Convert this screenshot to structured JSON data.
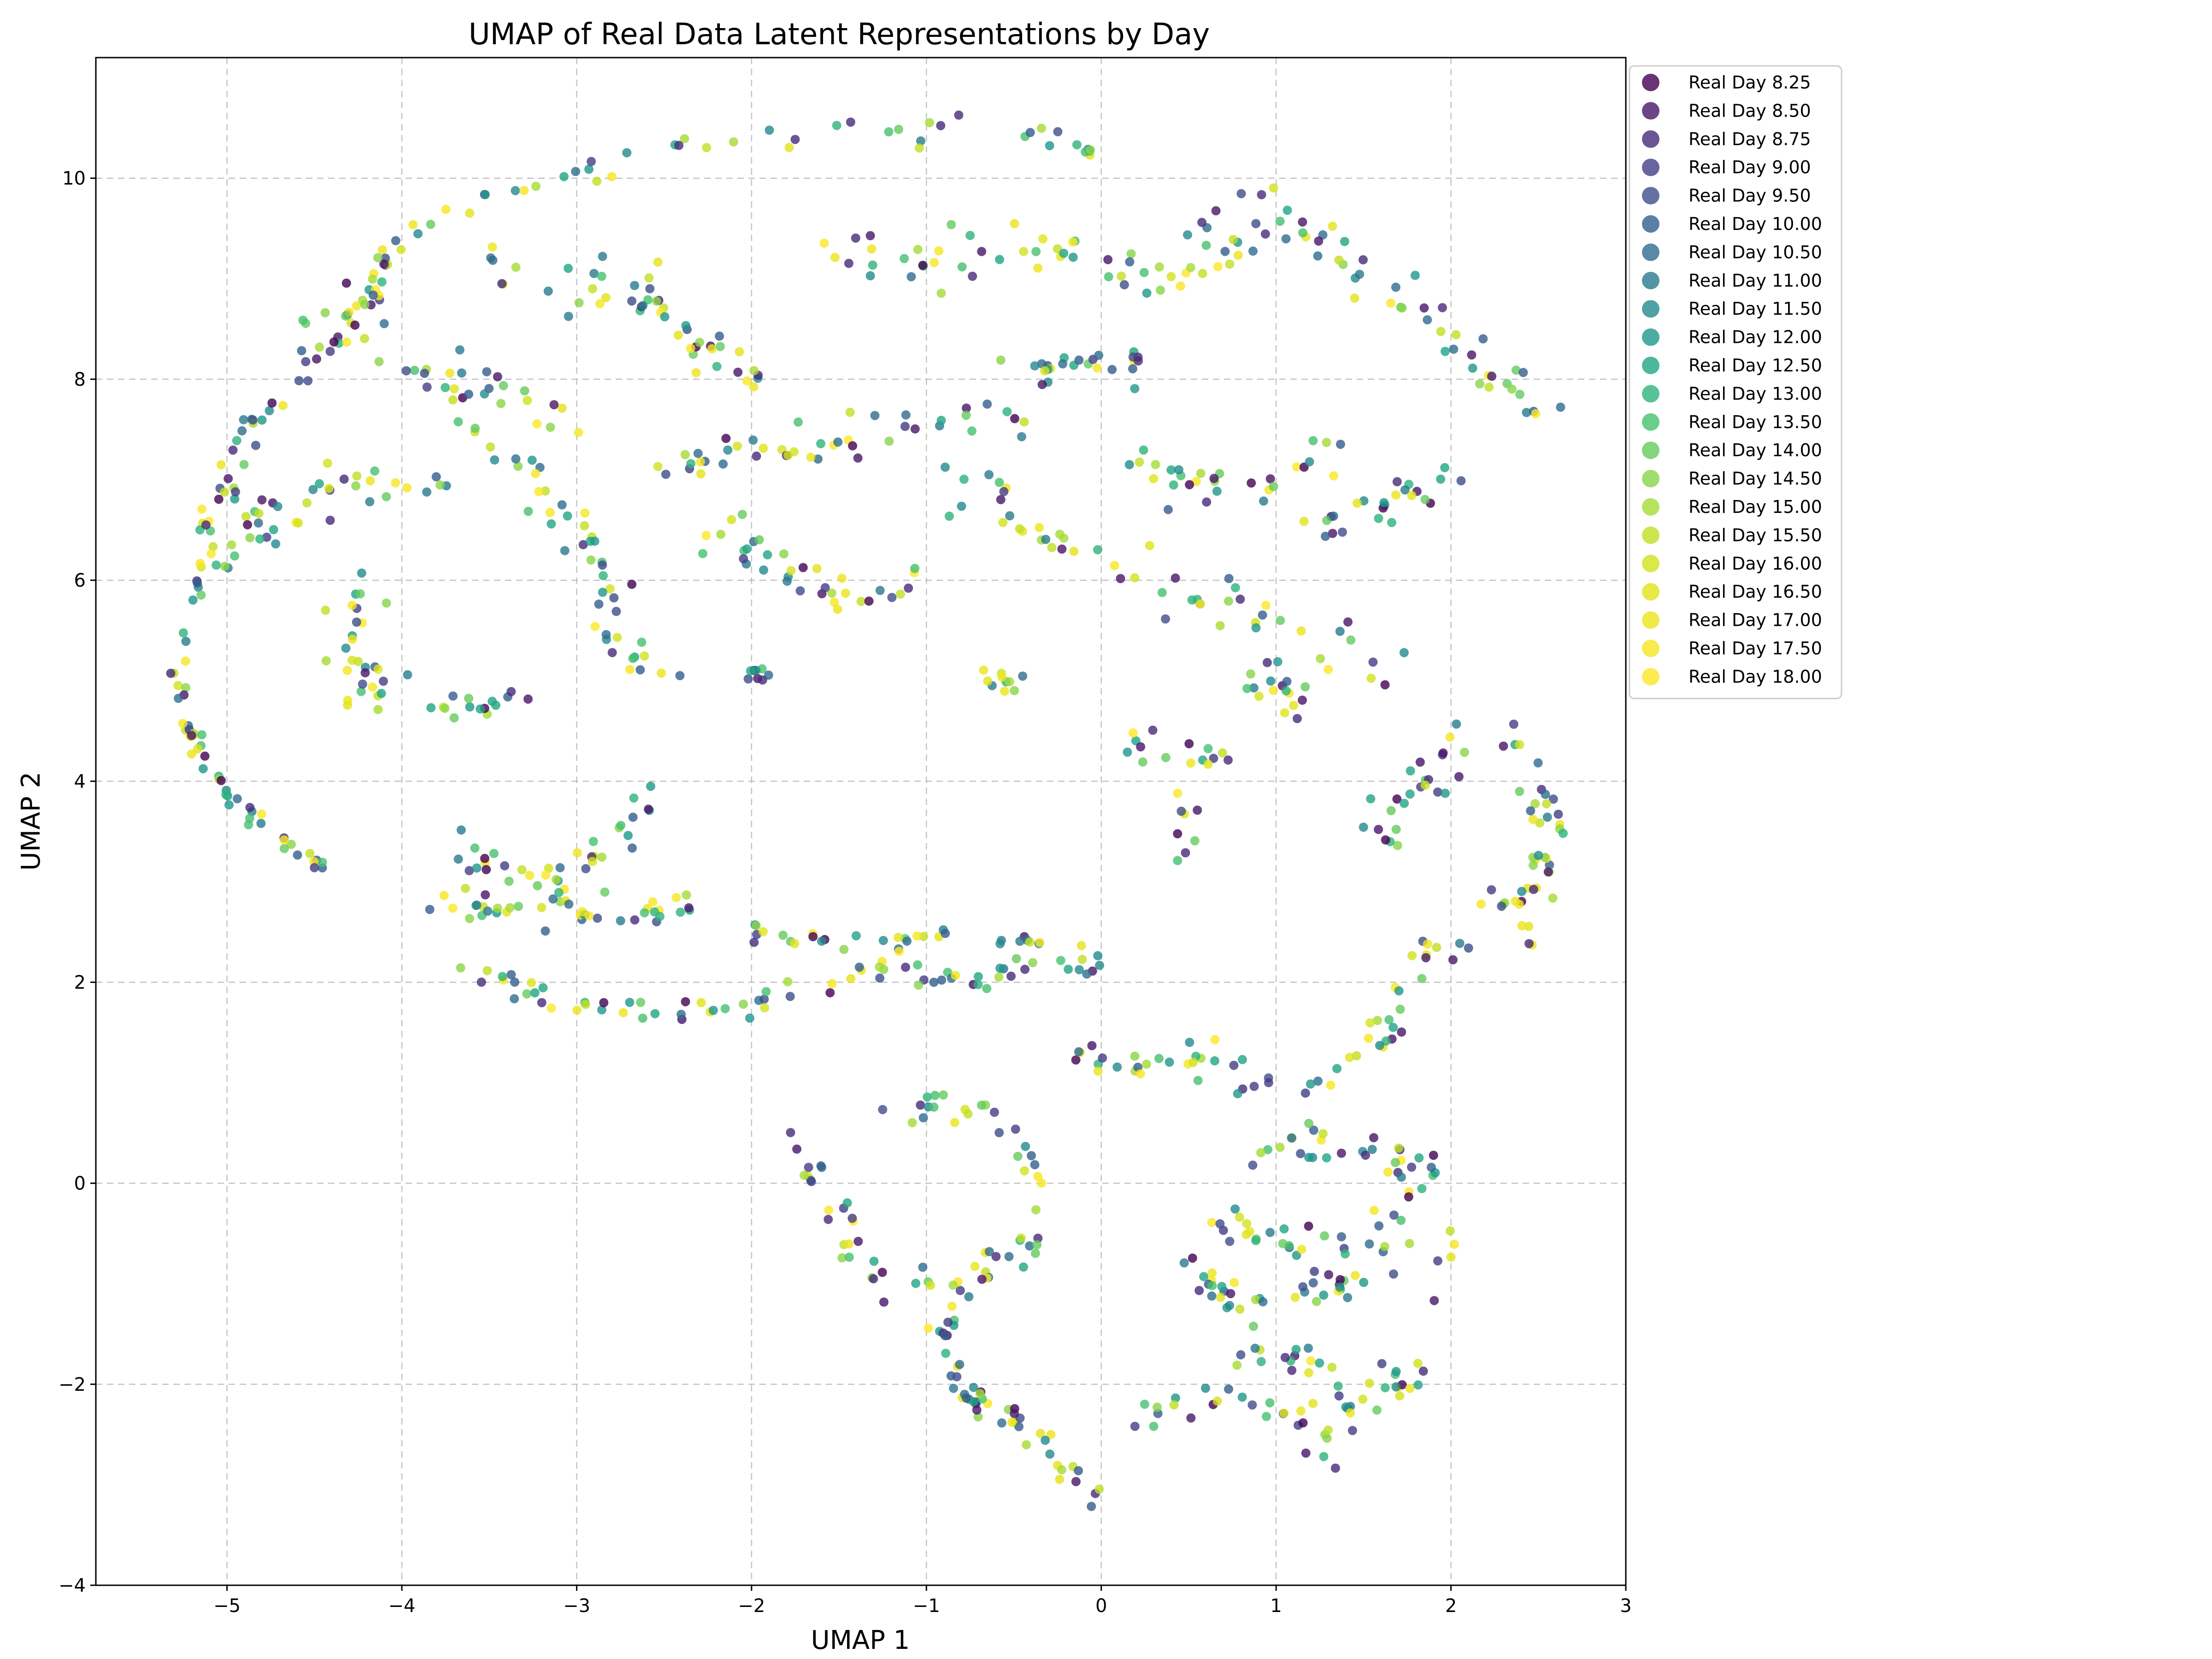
{
  "chart_data": {
    "type": "scatter",
    "title": "UMAP of Real Data Latent Representations by Day",
    "xlabel": "UMAP 1",
    "ylabel": "UMAP 2",
    "xlim": [
      -5.75,
      3.0
    ],
    "ylim": [
      -4.0,
      11.2
    ],
    "xticks": [
      -5,
      -4,
      -3,
      -2,
      -1,
      0,
      1,
      2,
      3
    ],
    "yticks": [
      -4,
      -2,
      0,
      2,
      4,
      6,
      8,
      10
    ],
    "xtick_labels": [
      "−5",
      "−4",
      "−3",
      "−2",
      "−1",
      "0",
      "1",
      "2",
      "3"
    ],
    "ytick_labels": [
      "−4",
      "−2",
      "0",
      "2",
      "4",
      "6",
      "8",
      "10"
    ],
    "grid": true,
    "legend_position": "outside upper-right",
    "colormap": "viridis",
    "marker_opacity": 0.8,
    "series": [
      {
        "name": "Real Day 8.25",
        "color": "#440154"
      },
      {
        "name": "Real Day 8.50",
        "color": "#481769"
      },
      {
        "name": "Real Day 8.75",
        "color": "#472a7a"
      },
      {
        "name": "Real Day 9.00",
        "color": "#433d84"
      },
      {
        "name": "Real Day 9.50",
        "color": "#3d4e8a"
      },
      {
        "name": "Real Day 10.00",
        "color": "#355e8d"
      },
      {
        "name": "Real Day 10.50",
        "color": "#2e6d8e"
      },
      {
        "name": "Real Day 11.00",
        "color": "#297b8e"
      },
      {
        "name": "Real Day 11.50",
        "color": "#23898e"
      },
      {
        "name": "Real Day 12.00",
        "color": "#1f978b"
      },
      {
        "name": "Real Day 12.50",
        "color": "#21a585"
      },
      {
        "name": "Real Day 13.00",
        "color": "#2eb37c"
      },
      {
        "name": "Real Day 13.50",
        "color": "#46c06f"
      },
      {
        "name": "Real Day 14.00",
        "color": "#65cb5e"
      },
      {
        "name": "Real Day 14.50",
        "color": "#89d548"
      },
      {
        "name": "Real Day 15.00",
        "color": "#a5db36"
      },
      {
        "name": "Real Day 15.50",
        "color": "#c2df23"
      },
      {
        "name": "Real Day 16.00",
        "color": "#d2e21b"
      },
      {
        "name": "Real Day 16.50",
        "color": "#e2e418"
      },
      {
        "name": "Real Day 17.00",
        "color": "#ece51b"
      },
      {
        "name": "Real Day 17.50",
        "color": "#f6e620"
      },
      {
        "name": "Real Day 18.00",
        "color": "#fde725"
      }
    ],
    "point_paths": [
      {
        "points": [
          [
            -5.3,
            4.8
          ],
          [
            -5.25,
            5.6
          ],
          [
            -5.15,
            6.3
          ],
          [
            -4.95,
            7.3
          ],
          [
            -4.7,
            7.8
          ],
          [
            -4.3,
            8.5
          ],
          [
            -4.0,
            9.4
          ],
          [
            -3.6,
            9.8
          ],
          [
            -3.1,
            10.0
          ],
          [
            -2.6,
            10.25
          ],
          [
            -2.0,
            10.4
          ],
          [
            -1.2,
            10.45
          ],
          [
            -0.5,
            10.5
          ],
          [
            0.0,
            10.3
          ]
        ],
        "n": 120,
        "jitter": 0.08
      },
      {
        "points": [
          [
            -5.3,
            4.8
          ],
          [
            -5.2,
            4.4
          ],
          [
            -5.0,
            3.9
          ],
          [
            -4.8,
            3.55
          ],
          [
            -4.6,
            3.3
          ],
          [
            -4.35,
            3.1
          ]
        ],
        "n": 40,
        "jitter": 0.05
      },
      {
        "points": [
          [
            0.6,
            10.0
          ],
          [
            1.0,
            9.6
          ],
          [
            1.4,
            9.2
          ],
          [
            1.9,
            8.7
          ],
          [
            2.2,
            8.0
          ],
          [
            2.55,
            7.75
          ]
        ],
        "n": 50,
        "jitter": 0.12
      },
      {
        "points": [
          [
            -5.1,
            6.0
          ],
          [
            -4.8,
            6.5
          ],
          [
            -4.2,
            7.1
          ],
          [
            -3.9,
            6.9
          ],
          [
            -3.6,
            6.8
          ]
        ],
        "n": 40,
        "jitter": 0.12
      },
      {
        "points": [
          [
            -4.5,
            8.9
          ],
          [
            -4.1,
            8.3
          ],
          [
            -3.7,
            8.0
          ],
          [
            -3.3,
            7.8
          ],
          [
            -3.0,
            7.6
          ]
        ],
        "n": 40,
        "jitter": 0.15
      },
      {
        "points": [
          [
            -3.6,
            9.2
          ],
          [
            -3.2,
            8.9
          ],
          [
            -2.8,
            9.1
          ],
          [
            -2.5,
            8.6
          ],
          [
            -2.1,
            8.2
          ],
          [
            -1.8,
            7.8
          ]
        ],
        "n": 50,
        "jitter": 0.15
      },
      {
        "points": [
          [
            -3.5,
            7.5
          ],
          [
            -3.3,
            7.1
          ],
          [
            -2.9,
            6.3
          ],
          [
            -2.8,
            5.8
          ],
          [
            -2.8,
            5.3
          ],
          [
            -2.5,
            5.15
          ]
        ],
        "n": 45,
        "jitter": 0.12
      },
      {
        "points": [
          [
            -4.2,
            5.9
          ],
          [
            -4.3,
            5.4
          ],
          [
            -4.2,
            5.0
          ],
          [
            -4.1,
            4.8
          ]
        ],
        "n": 30,
        "jitter": 0.12
      },
      {
        "points": [
          [
            -3.8,
            4.75
          ],
          [
            -3.55,
            4.7
          ],
          [
            -3.3,
            4.9
          ]
        ],
        "n": 15,
        "jitter": 0.05
      },
      {
        "points": [
          [
            -2.3,
            6.5
          ],
          [
            -2.0,
            6.3
          ],
          [
            -1.7,
            6.0
          ],
          [
            -1.4,
            5.8
          ],
          [
            -1.1,
            6.0
          ]
        ],
        "n": 35,
        "jitter": 0.12
      },
      {
        "points": [
          [
            -2.5,
            7.2
          ],
          [
            -2.2,
            7.2
          ],
          [
            -1.9,
            7.3
          ],
          [
            -1.6,
            7.4
          ],
          [
            -1.2,
            7.5
          ],
          [
            -0.8,
            7.5
          ],
          [
            -0.5,
            7.6
          ]
        ],
        "n": 45,
        "jitter": 0.12
      },
      {
        "points": [
          [
            -1.6,
            9.5
          ],
          [
            -1.3,
            9.2
          ],
          [
            -1.0,
            9.0
          ],
          [
            -0.6,
            9.4
          ],
          [
            -0.3,
            9.3
          ],
          [
            0.1,
            9.1
          ],
          [
            0.5,
            9.2
          ],
          [
            0.9,
            9.4
          ]
        ],
        "n": 60,
        "jitter": 0.15
      },
      {
        "points": [
          [
            -0.7,
            8.0
          ],
          [
            -0.3,
            8.1
          ],
          [
            0.0,
            8.2
          ],
          [
            0.3,
            8.2
          ]
        ],
        "n": 25,
        "jitter": 0.1
      },
      {
        "points": [
          [
            -0.8,
            7.0
          ],
          [
            -0.5,
            6.7
          ],
          [
            -0.2,
            6.4
          ],
          [
            0.1,
            6.2
          ],
          [
            0.4,
            6.0
          ],
          [
            0.7,
            5.7
          ],
          [
            1.0,
            5.4
          ],
          [
            1.3,
            5.3
          ],
          [
            1.6,
            5.3
          ]
        ],
        "n": 55,
        "jitter": 0.15
      },
      {
        "points": [
          [
            0.2,
            7.3
          ],
          [
            0.5,
            7.0
          ],
          [
            0.8,
            6.9
          ],
          [
            1.1,
            7.1
          ],
          [
            1.4,
            7.3
          ]
        ],
        "n": 30,
        "jitter": 0.12
      },
      {
        "points": [
          [
            1.2,
            6.5
          ],
          [
            1.5,
            6.6
          ],
          [
            1.8,
            6.9
          ],
          [
            2.0,
            7.1
          ]
        ],
        "n": 25,
        "jitter": 0.12
      },
      {
        "points": [
          [
            0.8,
            5.0
          ],
          [
            1.0,
            4.9
          ],
          [
            1.3,
            4.7
          ]
        ],
        "n": 15,
        "jitter": 0.08
      },
      {
        "points": [
          [
            0.1,
            4.4
          ],
          [
            0.4,
            4.3
          ],
          [
            0.7,
            4.2
          ]
        ],
        "n": 15,
        "jitter": 0.08
      },
      {
        "points": [
          [
            -0.7,
            5.0
          ],
          [
            -0.5,
            4.95
          ],
          [
            -0.4,
            5.1
          ]
        ],
        "n": 10,
        "jitter": 0.05
      },
      {
        "points": [
          [
            -2.1,
            5.0
          ],
          [
            -2.0,
            5.05
          ],
          [
            -1.9,
            5.1
          ]
        ],
        "n": 8,
        "jitter": 0.05
      },
      {
        "points": [
          [
            -3.8,
            2.8
          ],
          [
            -3.5,
            2.75
          ],
          [
            -3.2,
            2.8
          ],
          [
            -2.9,
            2.7
          ],
          [
            -2.6,
            2.7
          ],
          [
            -2.3,
            2.75
          ]
        ],
        "n": 45,
        "jitter": 0.08
      },
      {
        "points": [
          [
            -3.7,
            3.3
          ],
          [
            -3.5,
            3.1
          ],
          [
            -3.2,
            3.0
          ],
          [
            -2.9,
            3.3
          ],
          [
            -2.7,
            3.5
          ],
          [
            -2.6,
            3.8
          ]
        ],
        "n": 35,
        "jitter": 0.1
      },
      {
        "points": [
          [
            -3.7,
            2.1
          ],
          [
            -3.4,
            2.0
          ],
          [
            -3.1,
            1.8
          ],
          [
            -2.8,
            1.75
          ],
          [
            -2.4,
            1.7
          ],
          [
            -2.0,
            1.8
          ],
          [
            -1.6,
            2.0
          ],
          [
            -1.2,
            2.1
          ],
          [
            -0.8,
            2.0
          ],
          [
            -0.4,
            2.2
          ],
          [
            0.0,
            2.1
          ]
        ],
        "n": 75,
        "jitter": 0.08
      },
      {
        "points": [
          [
            -2.0,
            2.5
          ],
          [
            -1.6,
            2.45
          ],
          [
            -1.2,
            2.4
          ],
          [
            -0.8,
            2.5
          ],
          [
            -0.4,
            2.4
          ],
          [
            0.0,
            2.3
          ]
        ],
        "n": 35,
        "jitter": 0.05
      },
      {
        "points": [
          [
            0.3,
            1.5
          ],
          [
            0.6,
            1.4
          ],
          [
            0.9,
            1.0
          ],
          [
            1.2,
            1.0
          ],
          [
            1.5,
            1.3
          ],
          [
            1.7,
            1.8
          ],
          [
            1.9,
            2.3
          ],
          [
            2.1,
            2.6
          ],
          [
            2.4,
            2.8
          ]
        ],
        "n": 45,
        "jitter": 0.1
      },
      {
        "points": [
          [
            2.1,
            4.7
          ],
          [
            2.3,
            4.4
          ],
          [
            2.45,
            4.1
          ],
          [
            2.55,
            3.5
          ],
          [
            2.5,
            3.0
          ],
          [
            2.4,
            2.5
          ]
        ],
        "n": 40,
        "jitter": 0.1
      },
      {
        "points": [
          [
            1.5,
            3.3
          ],
          [
            1.7,
            3.7
          ],
          [
            1.9,
            4.0
          ],
          [
            2.1,
            4.5
          ]
        ],
        "n": 25,
        "jitter": 0.12
      },
      {
        "points": [
          [
            -1.8,
            0.5
          ],
          [
            -1.6,
            0.0
          ],
          [
            -1.5,
            -0.5
          ],
          [
            -1.3,
            -1.0
          ]
        ],
        "n": 25,
        "jitter": 0.08
      },
      {
        "points": [
          [
            -1.2,
            0.6
          ],
          [
            -0.9,
            0.8
          ],
          [
            -0.6,
            0.6
          ],
          [
            -0.4,
            0.2
          ],
          [
            -0.3,
            -0.4
          ]
        ],
        "n": 25,
        "jitter": 0.08
      },
      {
        "points": [
          [
            -1.0,
            -0.9
          ],
          [
            -0.8,
            -1.1
          ],
          [
            -0.6,
            -0.8
          ],
          [
            -0.4,
            -0.6
          ]
        ],
        "n": 25,
        "jitter": 0.08
      },
      {
        "points": [
          [
            -0.9,
            -1.4
          ],
          [
            -0.8,
            -1.9
          ],
          [
            -0.7,
            -2.2
          ],
          [
            -0.5,
            -2.3
          ],
          [
            -0.3,
            -2.6
          ],
          [
            -0.2,
            -2.8
          ],
          [
            -0.1,
            -3.1
          ],
          [
            -0.05,
            -3.25
          ]
        ],
        "n": 50,
        "jitter": 0.07
      },
      {
        "points": [
          [
            0.2,
            -2.3
          ],
          [
            0.5,
            -2.2
          ],
          [
            0.8,
            -2.2
          ],
          [
            1.1,
            -2.3
          ],
          [
            1.3,
            -2.6
          ],
          [
            1.5,
            -2.1
          ],
          [
            1.8,
            -2.0
          ]
        ],
        "n": 40,
        "jitter": 0.1
      },
      {
        "points": [
          [
            0.9,
            0.3
          ],
          [
            1.2,
            0.4
          ],
          [
            1.5,
            0.3
          ],
          [
            1.8,
            0.2
          ],
          [
            1.9,
            -0.1
          ]
        ],
        "n": 35,
        "jitter": 0.1
      },
      {
        "points": [
          [
            0.7,
            -0.3
          ],
          [
            0.9,
            -0.5
          ],
          [
            1.2,
            -0.6
          ],
          [
            1.5,
            -0.5
          ],
          [
            1.8,
            -0.4
          ],
          [
            2.0,
            -0.7
          ]
        ],
        "n": 35,
        "jitter": 0.1
      },
      {
        "points": [
          [
            0.5,
            -0.8
          ],
          [
            0.7,
            -1.1
          ],
          [
            1.0,
            -1.2
          ],
          [
            1.3,
            -1.0
          ],
          [
            1.6,
            -1.0
          ],
          [
            1.9,
            -1.1
          ]
        ],
        "n": 40,
        "jitter": 0.1
      },
      {
        "points": [
          [
            0.8,
            -1.7
          ],
          [
            1.1,
            -1.8
          ],
          [
            1.4,
            -1.9
          ],
          [
            1.7,
            -2.0
          ],
          [
            1.9,
            -1.9
          ]
        ],
        "n": 25,
        "jitter": 0.08
      },
      {
        "points": [
          [
            -0.2,
            1.3
          ],
          [
            0.0,
            1.2
          ],
          [
            0.3,
            1.15
          ],
          [
            0.6,
            1.2
          ]
        ],
        "n": 20,
        "jitter": 0.06
      },
      {
        "points": [
          [
            0.4,
            2.9
          ],
          [
            0.5,
            3.4
          ],
          [
            0.45,
            3.8
          ]
        ],
        "n": 8,
        "jitter": 0.06
      }
    ]
  }
}
